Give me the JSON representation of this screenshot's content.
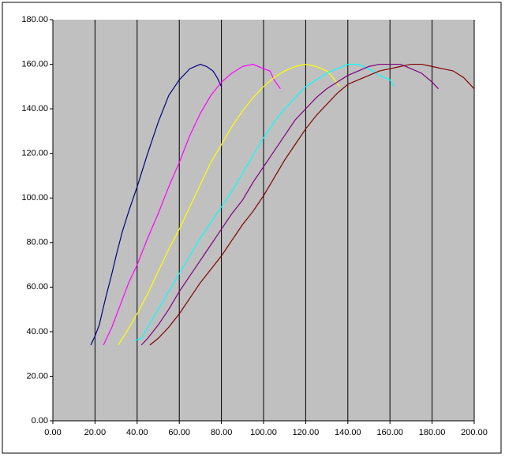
{
  "chart_data": {
    "type": "line",
    "xlim": [
      0,
      200
    ],
    "ylim": [
      0,
      180
    ],
    "xticks": [
      {
        "value": 0,
        "label": "0.00"
      },
      {
        "value": 20,
        "label": "20.00"
      },
      {
        "value": 40,
        "label": "40.00"
      },
      {
        "value": 60,
        "label": "60.00"
      },
      {
        "value": 80,
        "label": "80.00"
      },
      {
        "value": 100,
        "label": "100.00"
      },
      {
        "value": 120,
        "label": "120.00"
      },
      {
        "value": 140,
        "label": "140.00"
      },
      {
        "value": 160,
        "label": "160.00"
      },
      {
        "value": 180,
        "label": "180.00"
      },
      {
        "value": 200,
        "label": "200.00"
      }
    ],
    "yticks": [
      {
        "value": 0,
        "label": "0.00"
      },
      {
        "value": 20,
        "label": "20.00"
      },
      {
        "value": 40,
        "label": "40.00"
      },
      {
        "value": 60,
        "label": "60.00"
      },
      {
        "value": 80,
        "label": "80.00"
      },
      {
        "value": 100,
        "label": "100.00"
      },
      {
        "value": 120,
        "label": "120.00"
      },
      {
        "value": 140,
        "label": "140.00"
      },
      {
        "value": 160,
        "label": "160.00"
      },
      {
        "value": 180,
        "label": "180.00"
      }
    ],
    "x_grid": true,
    "series": [
      {
        "color": "#000080",
        "x": [
          18,
          20,
          22,
          25,
          28,
          30,
          33,
          36,
          40,
          45,
          50,
          55,
          60,
          65,
          70,
          73,
          76,
          78,
          80
        ],
        "values": [
          34,
          38,
          43,
          55,
          66,
          74,
          85,
          94,
          105,
          120,
          134,
          146,
          153,
          158,
          160,
          159,
          157,
          154,
          150
        ]
      },
      {
        "color": "#ff00ff",
        "x": [
          24,
          28,
          32,
          36,
          40,
          45,
          50,
          55,
          60,
          65,
          70,
          75,
          80,
          85,
          90,
          95,
          100,
          103,
          105,
          108
        ],
        "values": [
          34,
          42,
          52,
          62,
          70,
          82,
          93,
          105,
          116,
          128,
          138,
          146,
          152,
          156,
          159,
          160,
          158,
          157,
          153,
          149
        ]
      },
      {
        "color": "#ffff00",
        "x": [
          31,
          35,
          40,
          45,
          50,
          55,
          60,
          65,
          70,
          75,
          80,
          85,
          90,
          95,
          100,
          105,
          110,
          115,
          120,
          125,
          130,
          133,
          136
        ],
        "values": [
          34,
          40,
          48,
          57,
          67,
          77,
          86,
          96,
          106,
          116,
          124,
          132,
          139,
          145,
          150,
          154,
          157,
          159,
          160,
          159,
          157,
          154,
          150
        ]
      },
      {
        "color": "#00ffff",
        "x": [
          39,
          42,
          45,
          50,
          55,
          60,
          65,
          70,
          75,
          80,
          85,
          90,
          95,
          100,
          105,
          110,
          115,
          120,
          125,
          130,
          135,
          140,
          145,
          150,
          155,
          160,
          162
        ],
        "values": [
          36,
          37,
          42,
          50,
          58,
          66,
          74,
          82,
          89,
          96,
          103,
          111,
          119,
          127,
          134,
          140,
          145,
          150,
          153,
          156,
          158,
          160,
          160,
          158,
          155,
          153,
          150
        ]
      },
      {
        "color": "#800080",
        "x": [
          42,
          45,
          50,
          55,
          60,
          65,
          70,
          75,
          80,
          85,
          90,
          95,
          100,
          105,
          110,
          115,
          120,
          125,
          130,
          135,
          140,
          145,
          150,
          155,
          160,
          165,
          170,
          175,
          180,
          183
        ],
        "values": [
          34,
          37,
          43,
          50,
          58,
          65,
          72,
          79,
          86,
          93,
          99,
          107,
          114,
          121,
          128,
          135,
          140,
          145,
          149,
          152,
          155,
          157,
          159,
          160,
          160,
          160,
          158,
          156,
          152,
          149
        ]
      },
      {
        "color": "#800000",
        "x": [
          46,
          50,
          55,
          60,
          65,
          70,
          75,
          80,
          85,
          90,
          95,
          100,
          105,
          110,
          115,
          120,
          125,
          130,
          135,
          140,
          145,
          150,
          155,
          160,
          165,
          170,
          175,
          180,
          185,
          190,
          195,
          200
        ],
        "values": [
          34,
          37,
          42,
          48,
          55,
          62,
          68,
          74,
          81,
          88,
          94,
          101,
          109,
          117,
          124,
          131,
          137,
          142,
          147,
          151,
          153,
          155,
          157,
          158,
          159,
          160,
          160,
          159,
          158,
          157,
          154,
          149
        ]
      }
    ]
  }
}
